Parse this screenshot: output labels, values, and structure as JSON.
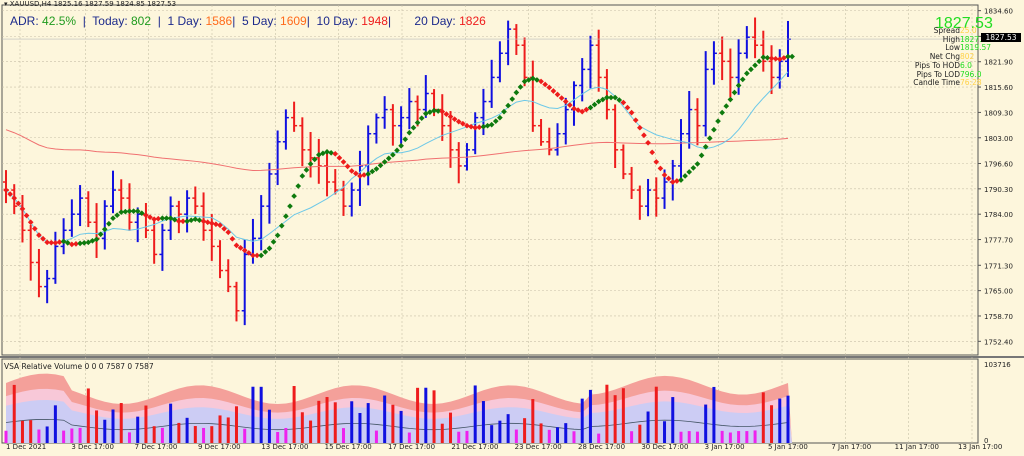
{
  "header": {
    "symbol_line": "XAUUSD,H4  1825.16 1827.59 1824.85 1827.53"
  },
  "adr_bar": {
    "adr_label": "ADR: ",
    "adr_value": "42.5%",
    "today_label": "Today: ",
    "today_value": "802",
    "day1_label": "1 Day: ",
    "day1_value": "1586",
    "day5_label": "5 Day: ",
    "day5_value": "1609",
    "day10_label": "10 Day: ",
    "day10_value": "1948",
    "day20_label": "20 Day: ",
    "day20_value": "1826",
    "sep": "|"
  },
  "info_panel": {
    "price": "1827.53",
    "rows": [
      {
        "label": "Spread",
        "value": "25.0",
        "color": "#ffd24a"
      },
      {
        "label": "High",
        "value": "1827.59",
        "color": "#22dd22"
      },
      {
        "label": "Low",
        "value": "1819.57",
        "color": "#22dd22"
      },
      {
        "label": "Net Chg",
        "value": "802",
        "color": "#ffd24a"
      },
      {
        "label": "Pips To HOD",
        "value": "6.0",
        "color": "#22dd22"
      },
      {
        "label": "Pips To LOD",
        "value": "796.0",
        "color": "#22dd22"
      },
      {
        "label": "Candle Time",
        "value": "76:28",
        "color": "#ffd24a"
      }
    ]
  },
  "current_price_label": "1827.53",
  "volume_panel": {
    "title": "VSA Relative Volume 0 0 0 7587 0 7587",
    "scale_top": "103716",
    "scale_bottom": "0"
  },
  "colors": {
    "background": "#fdf6dc",
    "bull_bar": "#1010e0",
    "bear_bar": "#ee1c1c",
    "ma_up": "#0e7a0e",
    "ma_down": "#ee1c1c",
    "ma_fast": "#6cc8e8",
    "ma_slow": "#f07070"
  },
  "chart_data": {
    "type": "ohlc",
    "title": "XAUUSD,H4",
    "price_axis": {
      "ticks": [
        "1834.60",
        "1828.20",
        "1821.90",
        "1815.60",
        "1809.30",
        "1803.00",
        "1796.60",
        "1790.30",
        "1784.00",
        "1777.70",
        "1771.30",
        "1765.00",
        "1758.70",
        "1752.40"
      ],
      "range": [
        1749.0,
        1836.0
      ]
    },
    "time_axis": {
      "ticks": [
        "1 Dec 2021",
        "3 Dec 17:00",
        "7 Dec 17:00",
        "9 Dec 17:00",
        "13 Dec 17:00",
        "15 Dec 17:00",
        "17 Dec 17:00",
        "21 Dec 17:00",
        "23 Dec 17:00",
        "28 Dec 17:00",
        "30 Dec 17:00",
        "3 Jan 17:00",
        "5 Jan 17:00",
        "7 Jan 17:00",
        "11 Jan 17:00",
        "13 Jan 17:00"
      ]
    },
    "close_path": [
      1790,
      1786,
      1780,
      1772,
      1766,
      1768,
      1776,
      1780,
      1784,
      1788,
      1782,
      1778,
      1786,
      1790,
      1788,
      1782,
      1784,
      1780,
      1774,
      1780,
      1786,
      1784,
      1788,
      1786,
      1780,
      1776,
      1770,
      1766,
      1760,
      1774,
      1778,
      1786,
      1794,
      1802,
      1808,
      1806,
      1800,
      1798,
      1796,
      1792,
      1790,
      1786,
      1790,
      1796,
      1804,
      1808,
      1810,
      1806,
      1808,
      1812,
      1810,
      1814,
      1810,
      1806,
      1800,
      1796,
      1800,
      1808,
      1812,
      1818,
      1824,
      1830,
      1826,
      1818,
      1806,
      1802,
      1800,
      1804,
      1810,
      1816,
      1820,
      1826,
      1818,
      1810,
      1800,
      1794,
      1790,
      1786,
      1790,
      1788,
      1792,
      1796,
      1804,
      1810,
      1806,
      1820,
      1824,
      1822,
      1818,
      1824,
      1828,
      1826,
      1822,
      1818,
      1822,
      1827.5
    ],
    "series": [
      {
        "name": "Trend MA (colored dots)",
        "color_up": "#0e7a0e",
        "color_down": "#ee1c1c"
      },
      {
        "name": "MA fast",
        "color": "#6cc8e8"
      },
      {
        "name": "MA slow (200)",
        "color": "#f07070"
      }
    ],
    "volume": {
      "title": "VSA Relative Volume",
      "max": 103716,
      "min": 0
    }
  }
}
